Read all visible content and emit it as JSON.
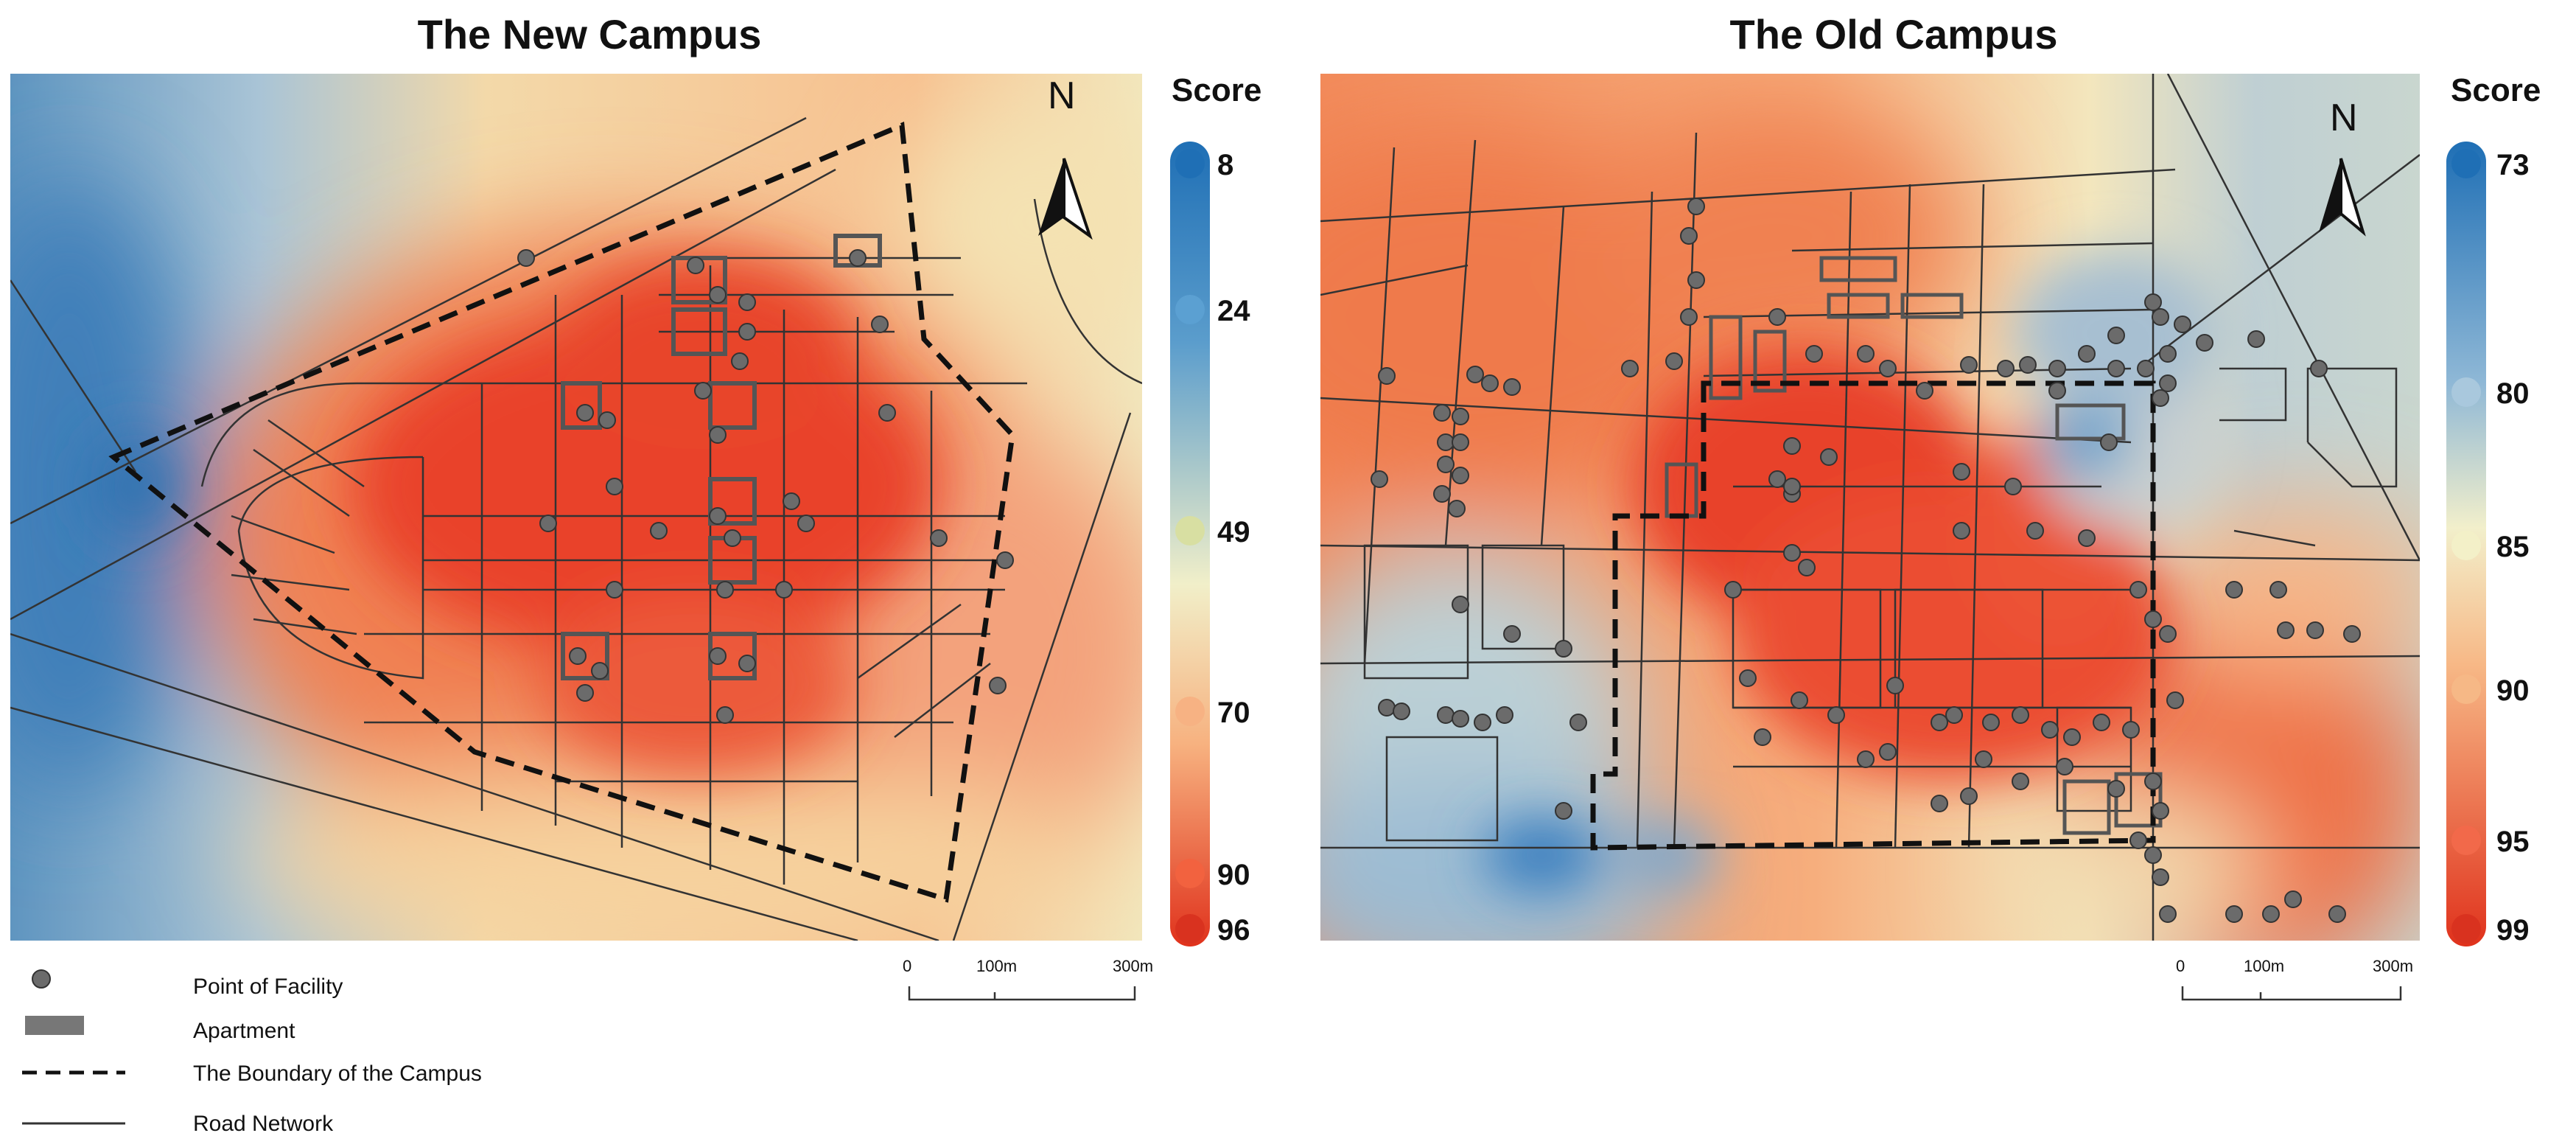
{
  "new_campus": {
    "title": "The New Campus",
    "legend_title": "Score",
    "score_ticks": [
      "8",
      "24",
      "49",
      "70",
      "90",
      "96"
    ],
    "north": "N",
    "scale": [
      "0",
      "100m",
      "300m"
    ]
  },
  "old_campus": {
    "title": "The Old Campus",
    "legend_title": "Score",
    "score_ticks": [
      "73",
      "80",
      "85",
      "90",
      "95",
      "99"
    ],
    "north": "N",
    "scale": [
      "0",
      "100m",
      "300m"
    ]
  },
  "legend": {
    "facility": "Point of Facility",
    "apartment": "Apartment",
    "boundary": "The Boundary of the Campus",
    "road": "Road Network"
  },
  "colors": {
    "blue": "#1f6fb5",
    "light_blue": "#a9c8dd",
    "cream": "#f3f0c8",
    "orange": "#f6a871",
    "red": "#e84a2e",
    "dark_red": "#d8321f"
  }
}
